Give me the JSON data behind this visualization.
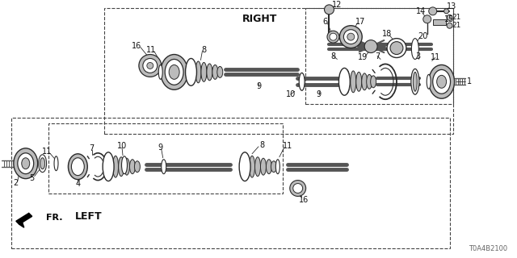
{
  "bg_color": "#ffffff",
  "fig_width": 6.4,
  "fig_height": 3.2,
  "diagram_id": "T0A4B2100",
  "label_RIGHT": "RIGHT",
  "label_LEFT": "LEFT",
  "label_FR": "FR.",
  "lc": "#2a2a2a",
  "dgray": "#555555",
  "lgray": "#bbbbbb",
  "dashed_color": "#444444"
}
